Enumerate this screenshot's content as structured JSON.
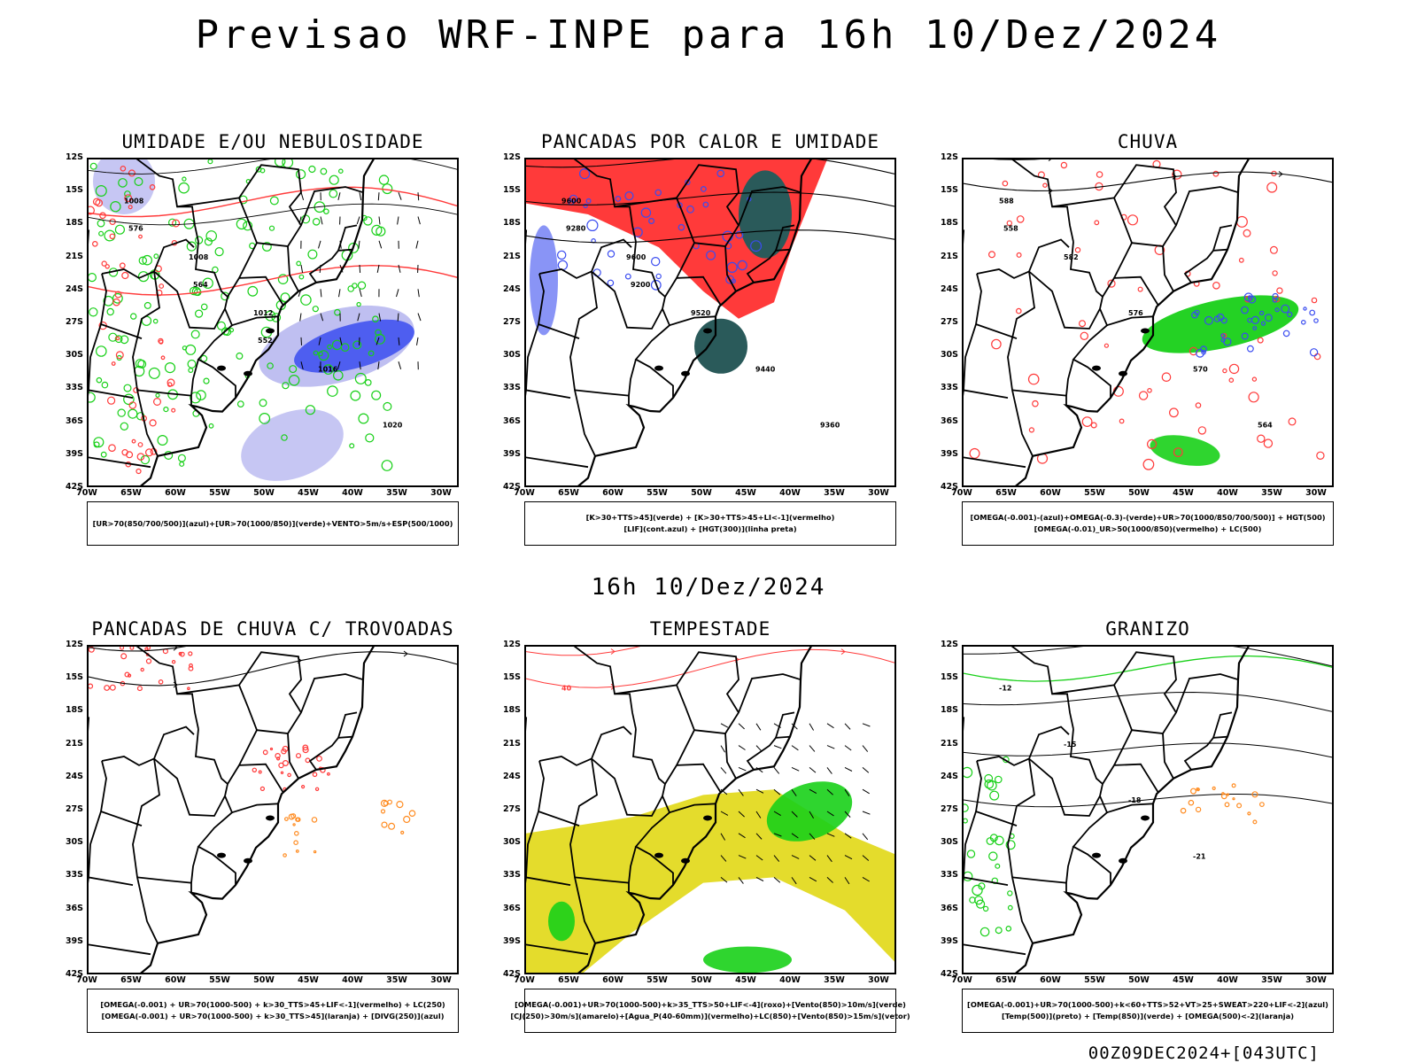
{
  "header": {
    "title": "Previsao WRF-INPE  para 16h 10/Dez/2024"
  },
  "mid_date": "16h 10/Dez/2024",
  "footer": {
    "run": "00Z09DEC2024+[043UTC]"
  },
  "axes": {
    "lat_ticks": [
      "12S",
      "15S",
      "18S",
      "21S",
      "24S",
      "27S",
      "30S",
      "33S",
      "36S",
      "39S",
      "42S"
    ],
    "lon_ticks": [
      "70W",
      "65W",
      "60W",
      "55W",
      "50W",
      "45W",
      "40W",
      "35W",
      "30W"
    ],
    "lat_range": [
      -12,
      -42
    ],
    "lon_range": [
      -70,
      -28
    ]
  },
  "colors": {
    "blue": "#3a4cf0",
    "green": "#18d018",
    "red": "#ff3a3a",
    "yellow": "#e4dc2c",
    "orange": "#ff8c22",
    "darkteal": "#2a5a5a",
    "lightblue": "#b8b8f0"
  },
  "panels": [
    {
      "title": "UMIDADE E/OU NEBULOSIDADE",
      "legend": [
        "[UR>70(850/700/500)](azul)+[UR>70(1000/850)](verde)+VENTO>5m/s+ESP(500/1000)"
      ],
      "contour_labels": [
        "1008",
        "1008",
        "1012",
        "1016",
        "1020",
        "576",
        "564",
        "552"
      ]
    },
    {
      "title": "PANCADAS POR CALOR E UMIDADE",
      "legend": [
        "[K>30+TTS>45](verde) + [K>30+TTS>45+LI<-1](vermelho)",
        "[LIF](cont.azul) + [HGT(300)](linha preta)"
      ],
      "contour_labels": [
        "9600",
        "9600",
        "9520",
        "9440",
        "9360",
        "9280",
        "9200"
      ]
    },
    {
      "title": "CHUVA",
      "legend": [
        "[OMEGA(-0.001)-(azul)+OMEGA(-0.3)-(verde)+UR>70(1000/850/700/500)] + HGT(500)",
        "[OMEGA(-0.01)_UR>50(1000/850)(vermelho) + LC(500)"
      ],
      "contour_labels": [
        "588",
        "582",
        "576",
        "570",
        "564",
        "558"
      ]
    },
    {
      "title": "PANCADAS DE CHUVA C/ TROVOADAS",
      "legend": [
        "[OMEGA(-0.001) + UR>70(1000-500) + k>30_TTS>45+LIF<-1](vermelho) + LC(250)",
        "[OMEGA(-0.001) + UR>70(1000-500) + k>30_TTS>45](laranja) + [DIVG(250)](azul)"
      ],
      "contour_labels": []
    },
    {
      "title": "TEMPESTADE",
      "legend": [
        "[OMEGA(-0.001)+UR>70(1000-500)+k>35_TTS>50+LIF<-4](roxo)+[Vento(850)>10m/s](verde)",
        "[CJ(250)>30m/s](amarelo)+[Agua_P(40-60mm)](vermelho)+LC(850)+[Vento(850)>15m/s](vetor)"
      ],
      "contour_labels": [
        "40"
      ]
    },
    {
      "title": "GRANIZO",
      "legend": [
        "[OMEGA(-0.001)+UR>70(1000-500)+k<60+TTS>52+VT>25+SWEAT>220+LIF<-2](azul)",
        "[Temp(500)](preto) + [Temp(850)](verde) + [OMEGA(500)<-2](laranja)"
      ],
      "contour_labels": [
        "-12",
        "-15",
        "-18",
        "-21"
      ]
    }
  ]
}
